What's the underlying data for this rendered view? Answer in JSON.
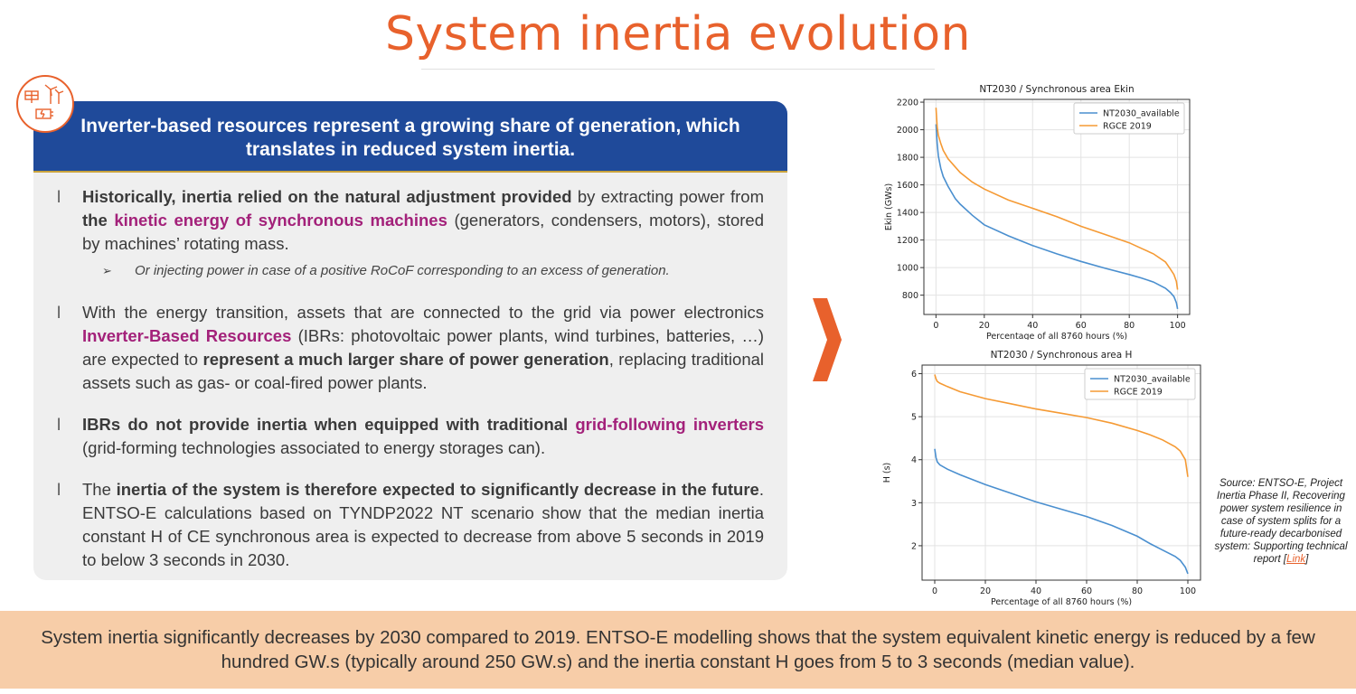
{
  "slide": {
    "title": "System inertia evolution",
    "banner": "Inverter-based resources represent a growing share of generation, which translates in reduced system inertia.",
    "bullet_mark": "l",
    "sub_arrow": "➢",
    "bullets": [
      {
        "parts": [
          {
            "t": "Historically, inertia relied on the natural adjustment provided",
            "s": "b"
          },
          {
            "t": " by extracting power from ",
            "s": ""
          },
          {
            "t": "the ",
            "s": "b"
          },
          {
            "t": "kinetic energy of synchronous machines",
            "s": "hl"
          },
          {
            "t": " (generators, condensers, motors), stored by machines’ rotating mass.",
            "s": ""
          }
        ],
        "sub": "Or injecting power in case of a positive RoCoF corresponding to an excess of generation."
      },
      {
        "parts": [
          {
            "t": "With the energy transition, assets that are connected to the grid via power electronics ",
            "s": ""
          },
          {
            "t": "Inverter-Based Resources",
            "s": "hl"
          },
          {
            "t": " (IBRs: photovoltaic power plants, wind turbines, batteries, …) are expected to ",
            "s": ""
          },
          {
            "t": "represent a much larger share of power generation",
            "s": "b"
          },
          {
            "t": ", replacing traditional assets such as gas- or coal-fired power plants.",
            "s": ""
          }
        ]
      },
      {
        "parts": [
          {
            "t": "IBRs do not provide inertia when equipped with traditional ",
            "s": "b"
          },
          {
            "t": "grid-following inverters",
            "s": "hl"
          },
          {
            "t": " (grid-forming technologies associated to energy storages can).",
            "s": ""
          }
        ]
      },
      {
        "parts": [
          {
            "t": "The ",
            "s": ""
          },
          {
            "t": "inertia of the system is therefore expected to significantly decrease in the future",
            "s": "b"
          },
          {
            "t": ". ENTSO-E calculations based on TYNDP2022 NT scenario show that the median inertia constant H of CE synchronous area is expected to decrease from above 5 seconds in 2019 to below 3 seconds in 2030.",
            "s": ""
          }
        ]
      }
    ],
    "source_text": "Source: ENTSO-E, Project Inertia Phase II, Recovering power system resilience in case of system splits for a future-ready decarbonised system: Supporting technical report [",
    "source_link": "Link",
    "source_end": "]",
    "footer": "System inertia significantly decreases by 2030 compared to 2019. ENTSO-E modelling shows that the system equivalent kinetic energy is reduced by a few hundred GW.s (typically around 250 GW.s) and the inertia constant H goes from 5 to 3 seconds (median value).",
    "colors": {
      "accent": "#e8612c",
      "banner": "#1f4a9a",
      "highlight": "#a3217a",
      "footer_bg": "#f7cda8",
      "series_blue": "#4a8fcf",
      "series_orange": "#f59a34"
    }
  },
  "chart_data": [
    {
      "type": "line",
      "title": "NT2030 / Synchronous area Ekin",
      "xlabel": "Percentage of all 8760 hours (%)",
      "ylabel": "Ekin (GWs)",
      "xlim": [
        -5,
        105
      ],
      "ylim": [
        660,
        2220
      ],
      "xticks": [
        0,
        20,
        40,
        60,
        80,
        100
      ],
      "yticks": [
        800,
        1000,
        1200,
        1400,
        1600,
        1800,
        2000,
        2200
      ],
      "grid": true,
      "legend": "top-right",
      "series": [
        {
          "name": "NT2030_available",
          "color": "#4a8fcf",
          "x": [
            0,
            0.5,
            1,
            2,
            3,
            5,
            8,
            10,
            15,
            20,
            30,
            40,
            50,
            60,
            70,
            80,
            85,
            90,
            95,
            97,
            98.5,
            99.5,
            100
          ],
          "y": [
            2040,
            1900,
            1810,
            1720,
            1660,
            1590,
            1500,
            1460,
            1380,
            1310,
            1230,
            1160,
            1100,
            1045,
            995,
            950,
            925,
            895,
            850,
            820,
            790,
            745,
            700
          ]
        },
        {
          "name": "RGCE 2019",
          "color": "#f59a34",
          "x": [
            0,
            0.5,
            1,
            2,
            3,
            5,
            8,
            10,
            15,
            20,
            30,
            40,
            50,
            60,
            70,
            80,
            85,
            90,
            95,
            97,
            98.5,
            99.5,
            100
          ],
          "y": [
            2160,
            2020,
            1960,
            1900,
            1850,
            1790,
            1730,
            1690,
            1620,
            1570,
            1490,
            1430,
            1370,
            1300,
            1240,
            1180,
            1140,
            1100,
            1040,
            990,
            950,
            900,
            840
          ]
        }
      ]
    },
    {
      "type": "line",
      "title": "NT2030 / Synchronous area H",
      "xlabel": "Percentage of all 8760 hours (%)",
      "ylabel": "H (s)",
      "xlim": [
        -5,
        105
      ],
      "ylim": [
        1.2,
        6.2
      ],
      "xticks": [
        0,
        20,
        40,
        60,
        80,
        100
      ],
      "yticks": [
        2,
        3,
        4,
        5,
        6
      ],
      "grid": true,
      "legend": "top-right",
      "series": [
        {
          "name": "NT2030_available",
          "color": "#4a8fcf",
          "x": [
            0,
            0.5,
            1,
            2,
            5,
            10,
            20,
            30,
            40,
            50,
            60,
            70,
            80,
            85,
            90,
            95,
            97,
            99,
            100
          ],
          "y": [
            4.25,
            4.05,
            3.95,
            3.88,
            3.78,
            3.65,
            3.42,
            3.22,
            3.02,
            2.85,
            2.68,
            2.47,
            2.22,
            2.05,
            1.9,
            1.75,
            1.66,
            1.5,
            1.35
          ]
        },
        {
          "name": "RGCE 2019",
          "color": "#f59a34",
          "x": [
            0,
            0.5,
            1,
            2,
            5,
            10,
            20,
            30,
            40,
            50,
            60,
            70,
            80,
            85,
            90,
            95,
            97,
            99,
            100
          ],
          "y": [
            5.98,
            5.88,
            5.82,
            5.78,
            5.7,
            5.58,
            5.42,
            5.3,
            5.18,
            5.08,
            4.98,
            4.85,
            4.68,
            4.58,
            4.46,
            4.3,
            4.2,
            4.0,
            3.6
          ]
        }
      ]
    }
  ]
}
